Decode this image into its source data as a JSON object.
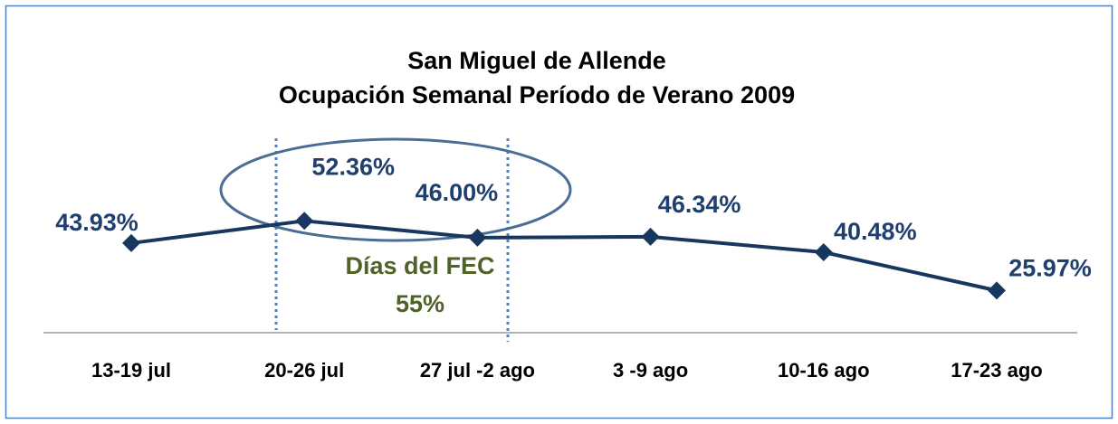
{
  "chart_data": {
    "type": "line",
    "title": [
      "San Miguel de Allende",
      "Ocupación Semanal Período de Verano 2009"
    ],
    "categories": [
      "13-19 jul",
      "20-26 jul",
      "27 jul -2 ago",
      "3 -9 ago",
      "10-16 ago",
      "17-23 ago"
    ],
    "values": [
      43.93,
      52.36,
      46.0,
      46.34,
      40.48,
      25.97
    ],
    "value_labels": [
      "43.93%",
      "52.36%",
      "46.00%",
      "46.34%",
      "40.48%",
      "25.97%"
    ],
    "color": "#17375e",
    "ylim": [
      10,
      60
    ],
    "annotations": [
      "Días del FEC",
      "55%"
    ]
  }
}
